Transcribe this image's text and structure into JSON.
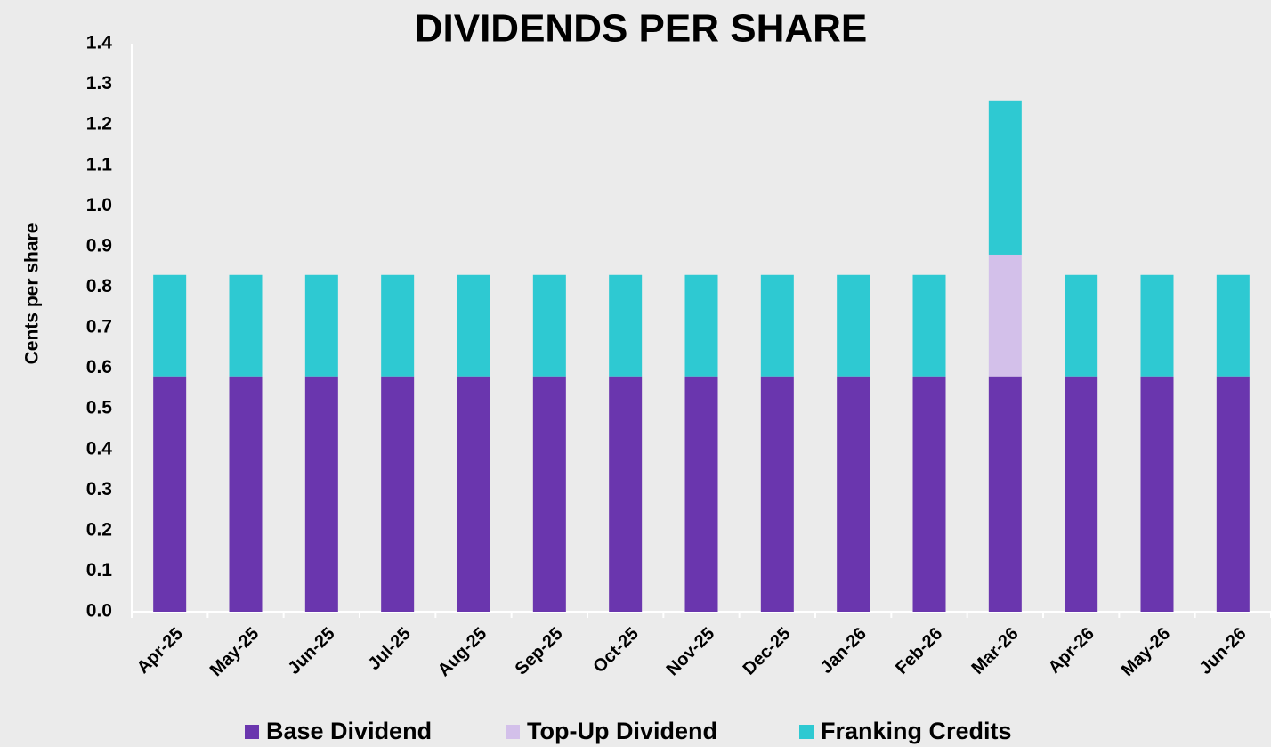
{
  "chart_data": {
    "type": "stacked_bar",
    "title": "DIVIDENDS PER SHARE",
    "ylabel": "Cents per share",
    "categories": [
      "Apr-25",
      "May-25",
      "Jun-25",
      "Jul-25",
      "Aug-25",
      "Sep-25",
      "Oct-25",
      "Nov-25",
      "Dec-25",
      "Jan-26",
      "Feb-26",
      "Mar-26",
      "Apr-26",
      "May-26",
      "Jun-26"
    ],
    "series": [
      {
        "name": "Base Dividend",
        "color": "#6a36ae",
        "values": [
          0.58,
          0.58,
          0.58,
          0.58,
          0.58,
          0.58,
          0.58,
          0.58,
          0.58,
          0.58,
          0.58,
          0.58,
          0.58,
          0.58,
          0.58
        ]
      },
      {
        "name": "Top-Up Dividend",
        "color": "#d3c0ea",
        "values": [
          0,
          0,
          0,
          0,
          0,
          0,
          0,
          0,
          0,
          0,
          0,
          0.3,
          0,
          0,
          0
        ]
      },
      {
        "name": "Franking Credits",
        "color": "#2ec9d2",
        "values": [
          0.25,
          0.25,
          0.25,
          0.25,
          0.25,
          0.25,
          0.25,
          0.25,
          0.25,
          0.25,
          0.25,
          0.38,
          0.25,
          0.25,
          0.25
        ]
      }
    ],
    "ylim": [
      0,
      1.4
    ],
    "yticks": [
      {
        "value": 0,
        "label": "0.0"
      },
      0.1,
      0.2,
      0.3,
      0.4,
      0.5,
      0.6,
      0.7,
      0.8,
      0.9,
      {
        "value": 1,
        "label": "1.0"
      },
      1.1,
      1.2,
      1.3,
      1.4
    ],
    "legend": "bottom"
  }
}
